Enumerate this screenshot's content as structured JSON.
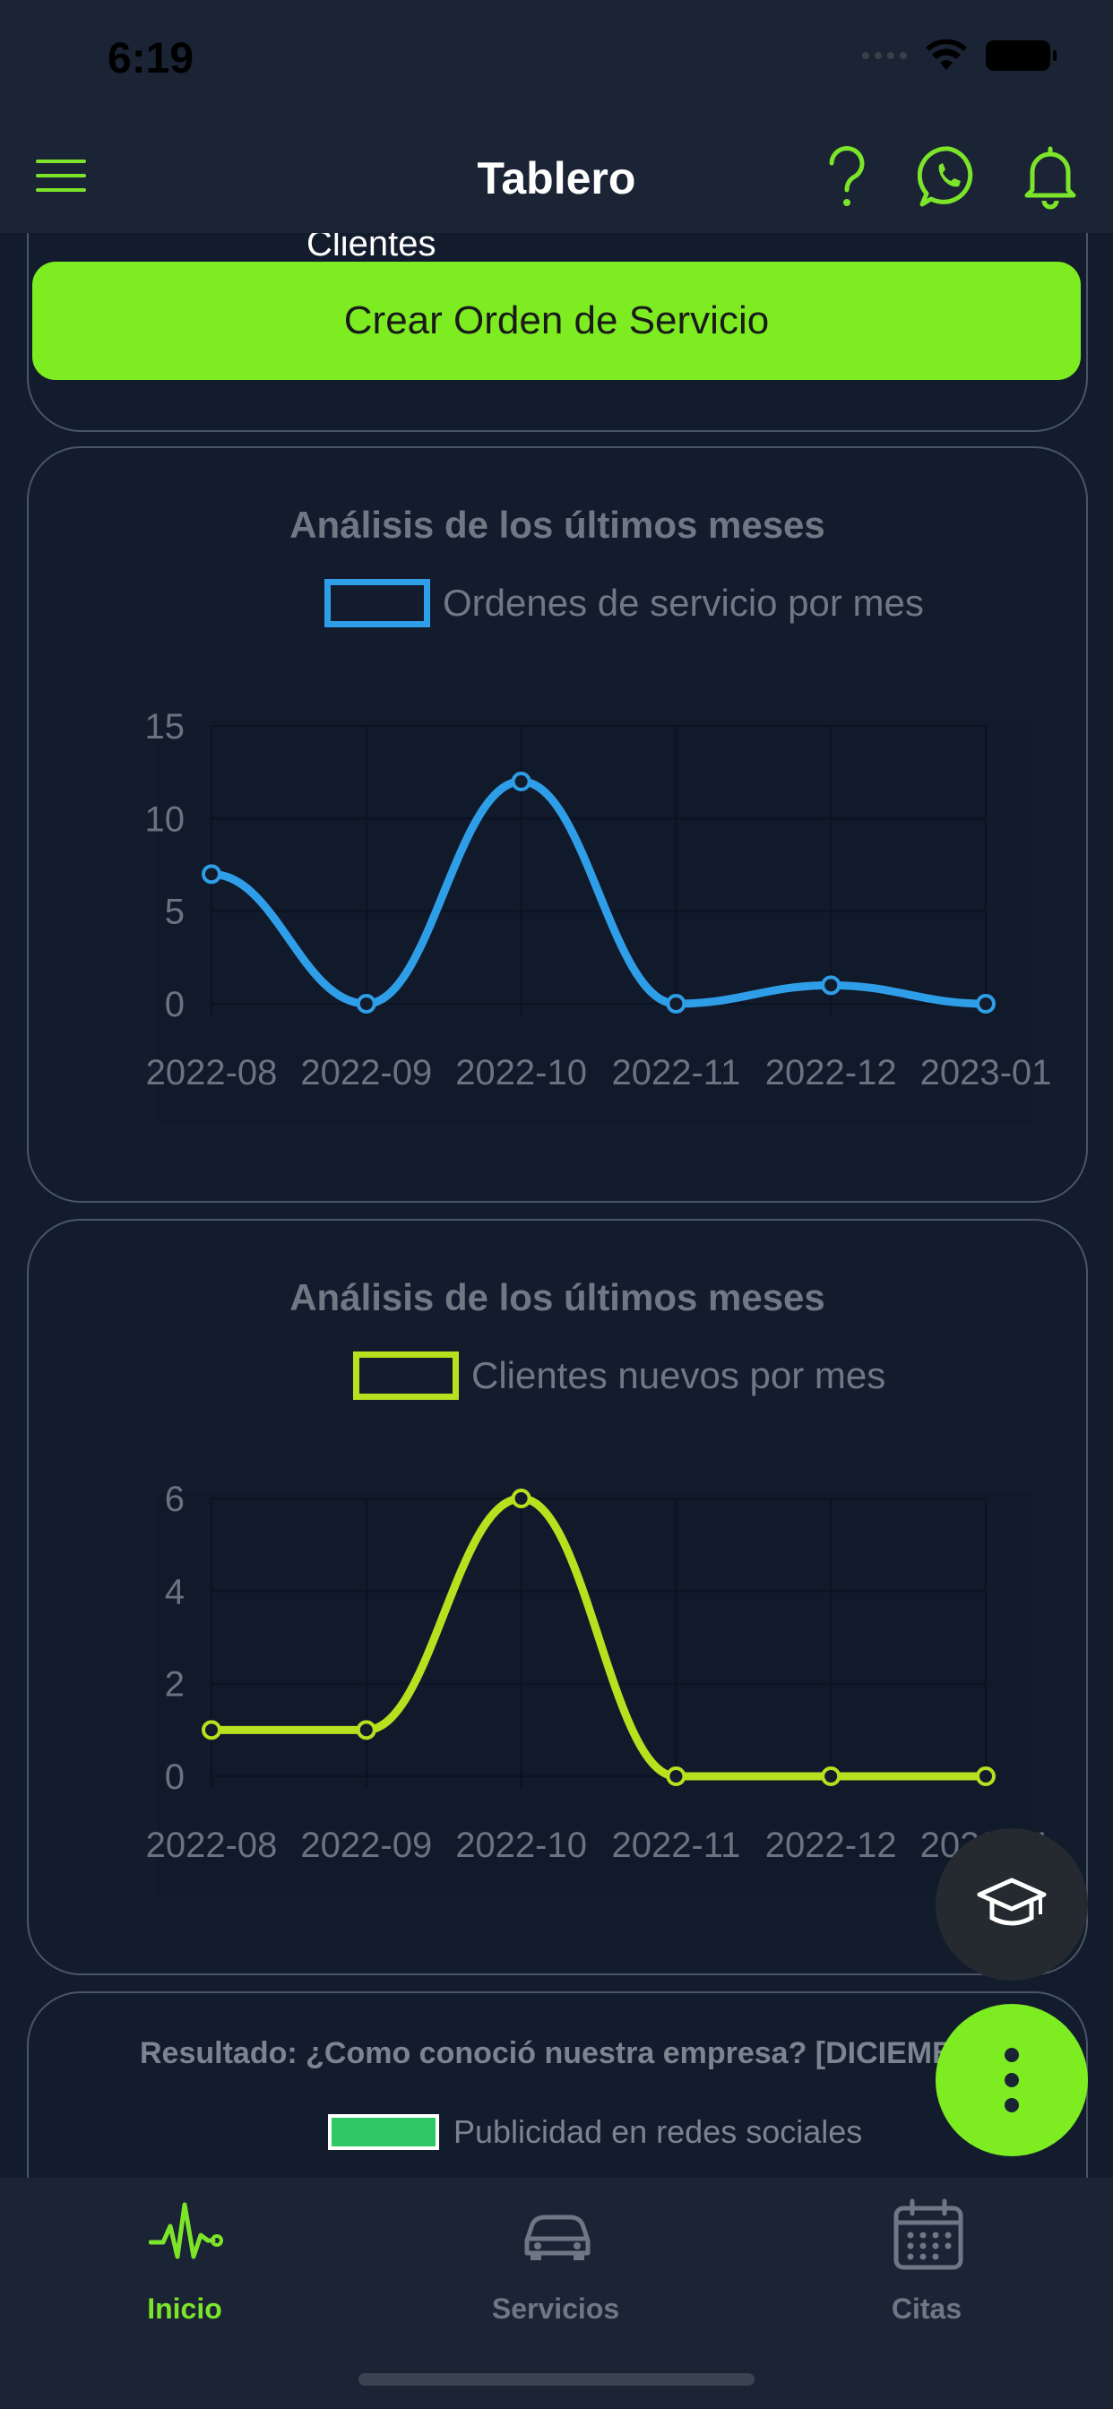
{
  "status_bar": {
    "time": "6:19"
  },
  "header": {
    "title": "Tablero"
  },
  "top_card": {
    "peek_text": "Clientes",
    "button_label": "Crear Orden de Servicio"
  },
  "charts": [
    {
      "title": "Análisis de los últimos meses",
      "legend": "Ordenes de servicio por mes",
      "color": "#2f9ee8",
      "y_ticks": [
        "15",
        "10",
        "5",
        "0"
      ],
      "x_ticks": [
        "2022-08",
        "2022-09",
        "2022-10",
        "2022-11",
        "2022-12",
        "2023-01"
      ]
    },
    {
      "title": "Análisis de los últimos meses",
      "legend": "Clientes nuevos por mes",
      "color": "#b8e01e",
      "y_ticks": [
        "6",
        "4",
        "2",
        "0"
      ],
      "x_ticks": [
        "2022-08",
        "2022-09",
        "2022-10",
        "2022-11",
        "2022-12",
        "2023-01"
      ]
    }
  ],
  "chart_data": [
    {
      "type": "line",
      "title": "Análisis de los últimos meses",
      "categories": [
        "2022-08",
        "2022-09",
        "2022-10",
        "2022-11",
        "2022-12",
        "2023-01"
      ],
      "series": [
        {
          "name": "Ordenes de servicio por mes",
          "values": [
            7,
            0,
            12,
            0,
            1,
            0
          ]
        }
      ],
      "ylim": [
        0,
        15
      ],
      "grid": true,
      "legend": "top-center"
    },
    {
      "type": "line",
      "title": "Análisis de los últimos meses",
      "categories": [
        "2022-08",
        "2022-09",
        "2022-10",
        "2022-11",
        "2022-12",
        "2023-01"
      ],
      "series": [
        {
          "name": "Clientes nuevos por mes",
          "values": [
            1,
            1,
            6,
            0,
            0,
            0
          ]
        }
      ],
      "ylim": [
        0,
        6
      ],
      "grid": true,
      "legend": "top-center"
    }
  ],
  "pie_card": {
    "title": "Resultado: ¿Como conoció nuestra empresa? [DICIEMBRE]",
    "legend": "Publicidad en redes sociales",
    "legend_color": "#2ec866"
  },
  "tabs": [
    {
      "label": "Inicio",
      "icon": "activity-icon",
      "active": true
    },
    {
      "label": "Servicios",
      "icon": "car-icon",
      "active": false
    },
    {
      "label": "Citas",
      "icon": "calendar-icon",
      "active": false
    }
  ],
  "fabs": {
    "learn_icon": "graduation-cap-icon",
    "more_icon": "more-vertical-icon"
  },
  "colors": {
    "accent": "#7ded22",
    "background": "#131c2d",
    "header": "#1a2435"
  }
}
